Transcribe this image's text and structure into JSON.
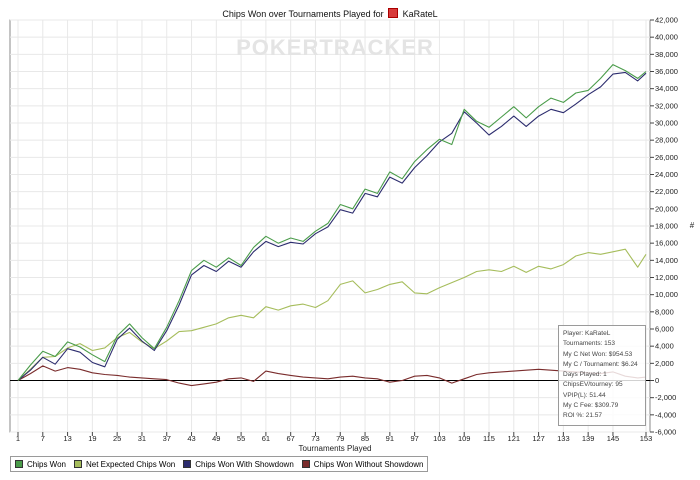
{
  "title": "Chips Won over Tournaments Played for",
  "player_in_title": "KaRateL",
  "watermark": "POKERTRACKER",
  "x_axis_label": "Tournaments Played",
  "y_axis_label": "#",
  "info_box": [
    "Player: KaRateL",
    "Tournaments: 153",
    "My C Net Won: $954.53",
    "My C / Tournament: $6.24",
    "Days Played: 1",
    "ChipsEV/tourney: 95",
    "VPIP(L): 51.44",
    "My C Fee: $309.79",
    "ROI %: 21.57"
  ],
  "colors": {
    "chips_won": "#4a9c4a",
    "net_expected": "#a6bd5c",
    "with_showdown": "#2c2c6e",
    "without_showdown": "#7a2c2c",
    "grid": "#e8e8e8",
    "zero_line": "#000000"
  },
  "chart_data": {
    "type": "line",
    "xlabel": "Tournaments Played",
    "ylabel": "#",
    "xlim": [
      1,
      153
    ],
    "ylim": [
      -6000,
      42000
    ],
    "x_ticks": [
      1,
      7,
      13,
      19,
      25,
      31,
      37,
      43,
      49,
      55,
      61,
      67,
      73,
      79,
      85,
      91,
      97,
      103,
      109,
      115,
      121,
      127,
      133,
      139,
      145,
      153
    ],
    "y_ticks": [
      "-6,000",
      "-4,000",
      "-2,000",
      "0",
      "2,000",
      "4,000",
      "6,000",
      "8,000",
      "10,000",
      "12,000",
      "14,000",
      "16,000",
      "18,000",
      "20,000",
      "22,000",
      "24,000",
      "26,000",
      "28,000",
      "30,000",
      "32,000",
      "34,000",
      "36,000",
      "38,000",
      "40,000",
      "42,000"
    ],
    "grid": true,
    "legend_position": "bottom-left",
    "series": [
      {
        "name": "Chips Won",
        "x": [
          1,
          4,
          7,
          10,
          13,
          16,
          19,
          22,
          25,
          28,
          31,
          34,
          37,
          40,
          43,
          46,
          49,
          52,
          55,
          58,
          61,
          64,
          67,
          70,
          73,
          76,
          79,
          82,
          85,
          88,
          91,
          94,
          97,
          100,
          103,
          106,
          109,
          112,
          115,
          118,
          121,
          124,
          127,
          130,
          133,
          136,
          139,
          142,
          145,
          148,
          151,
          153
        ],
        "values": [
          0,
          1800,
          3400,
          2800,
          4500,
          3900,
          3000,
          2200,
          5200,
          6600,
          5000,
          3700,
          6200,
          9300,
          12800,
          14000,
          13200,
          14300,
          13400,
          15500,
          16800,
          16000,
          16600,
          16200,
          17400,
          18300,
          20500,
          20000,
          22300,
          21800,
          24300,
          23500,
          25500,
          26900,
          28100,
          27500,
          31600,
          30200,
          29500,
          30700,
          31900,
          30600,
          31900,
          32900,
          32400,
          33500,
          33800,
          35200,
          36800,
          36100,
          35200,
          36000
        ]
      },
      {
        "name": "Net Expected Chips Won",
        "x": [
          1,
          4,
          7,
          10,
          13,
          16,
          19,
          22,
          25,
          28,
          31,
          34,
          37,
          40,
          43,
          46,
          49,
          52,
          55,
          58,
          61,
          64,
          67,
          70,
          73,
          76,
          79,
          82,
          85,
          88,
          91,
          94,
          97,
          100,
          103,
          106,
          109,
          112,
          115,
          118,
          121,
          124,
          127,
          130,
          133,
          136,
          139,
          142,
          145,
          148,
          151,
          153
        ],
        "values": [
          0,
          1300,
          2700,
          2800,
          3800,
          4300,
          3500,
          3800,
          5000,
          5600,
          4500,
          3700,
          4600,
          5700,
          5800,
          6200,
          6600,
          7300,
          7600,
          7300,
          8600,
          8200,
          8700,
          8900,
          8500,
          9300,
          11200,
          11600,
          10200,
          10600,
          11200,
          11500,
          10200,
          10100,
          10800,
          11400,
          12000,
          12700,
          12900,
          12700,
          13300,
          12600,
          13300,
          13000,
          13500,
          14500,
          14900,
          14700,
          15000,
          15300,
          13200,
          14700
        ]
      },
      {
        "name": "Chips Won With Showdown",
        "x": [
          1,
          4,
          7,
          10,
          13,
          16,
          19,
          22,
          25,
          28,
          31,
          34,
          37,
          40,
          43,
          46,
          49,
          52,
          55,
          58,
          61,
          64,
          67,
          70,
          73,
          76,
          79,
          82,
          85,
          88,
          91,
          94,
          97,
          100,
          103,
          106,
          109,
          112,
          115,
          118,
          121,
          124,
          127,
          130,
          133,
          136,
          139,
          142,
          145,
          148,
          151,
          153
        ],
        "values": [
          0,
          1200,
          2700,
          1900,
          3700,
          3300,
          2100,
          1600,
          4800,
          6100,
          4600,
          3500,
          5800,
          8800,
          12300,
          13400,
          12700,
          13900,
          13200,
          15000,
          16200,
          15600,
          16100,
          15900,
          17100,
          17900,
          19900,
          19500,
          21800,
          21400,
          23700,
          23000,
          24800,
          26200,
          27800,
          28800,
          31300,
          30000,
          28600,
          29600,
          30800,
          29600,
          30800,
          31600,
          31200,
          32200,
          33300,
          34200,
          35700,
          35900,
          34900,
          35800
        ]
      },
      {
        "name": "Chips Won Without Showdown",
        "x": [
          1,
          4,
          7,
          10,
          13,
          16,
          19,
          22,
          25,
          28,
          31,
          34,
          37,
          40,
          43,
          46,
          49,
          52,
          55,
          58,
          61,
          64,
          67,
          70,
          73,
          76,
          79,
          82,
          85,
          88,
          91,
          94,
          97,
          100,
          103,
          106,
          109,
          112,
          115,
          118,
          121,
          124,
          127,
          130,
          133,
          136,
          139,
          142,
          145,
          148,
          151,
          153
        ],
        "values": [
          0,
          800,
          1700,
          1100,
          1500,
          1300,
          900,
          700,
          600,
          400,
          300,
          200,
          100,
          -300,
          -600,
          -400,
          -200,
          200,
          300,
          -100,
          1100,
          800,
          600,
          400,
          300,
          200,
          400,
          500,
          300,
          200,
          -200,
          0,
          500,
          600,
          300,
          -300,
          200,
          700,
          900,
          1000,
          1100,
          1200,
          1300,
          1200,
          1100,
          1000,
          900,
          800,
          1000,
          500,
          300,
          400
        ]
      }
    ]
  }
}
